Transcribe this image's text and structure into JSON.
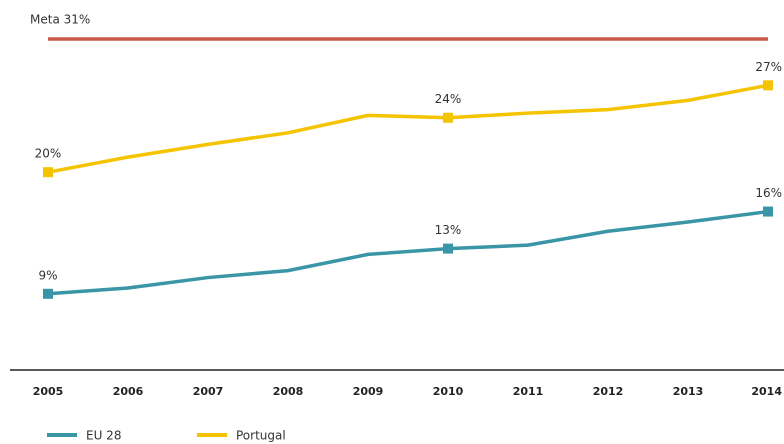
{
  "chart_data": {
    "type": "line",
    "x": [
      2005,
      2006,
      2007,
      2008,
      2009,
      2010,
      2011,
      2012,
      2013,
      2014
    ],
    "series": [
      {
        "name": "EU 28",
        "color": "#3a95a6",
        "values": [
          9.0,
          9.5,
          10.4,
          11.0,
          12.4,
          12.9,
          13.2,
          14.4,
          15.2,
          16.1
        ],
        "value_labels": [
          "9%",
          null,
          null,
          null,
          null,
          "13%",
          null,
          null,
          null,
          "16%"
        ]
      },
      {
        "name": "Portugal",
        "color": "#f5c400",
        "values": [
          19.5,
          20.8,
          21.9,
          22.9,
          24.4,
          24.2,
          24.6,
          24.9,
          25.7,
          27.0
        ],
        "value_labels": [
          "20%",
          null,
          null,
          null,
          null,
          "24%",
          null,
          null,
          null,
          "27%"
        ]
      }
    ],
    "target": {
      "label": "Meta 31%",
      "value": 31,
      "color": "#c8584a"
    },
    "ylim": [
      0,
      31
    ]
  }
}
